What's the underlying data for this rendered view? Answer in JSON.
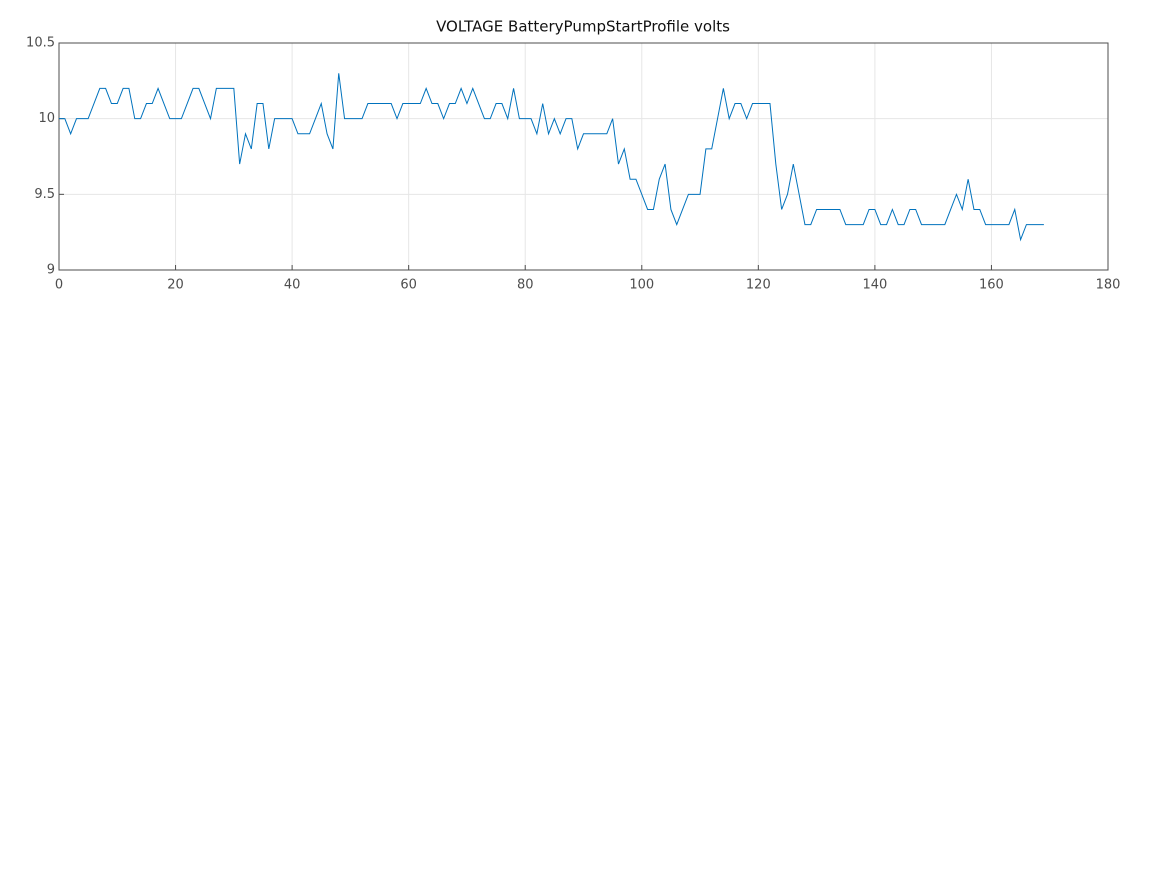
{
  "chart_data": {
    "type": "line",
    "title": "VOLTAGE BatteryPumpStartProfile volts",
    "x": [
      0,
      1,
      2,
      3,
      4,
      5,
      6,
      7,
      8,
      9,
      10,
      11,
      12,
      13,
      14,
      15,
      16,
      17,
      18,
      19,
      20,
      21,
      22,
      23,
      24,
      25,
      26,
      27,
      28,
      29,
      30,
      31,
      32,
      33,
      34,
      35,
      36,
      37,
      38,
      39,
      40,
      41,
      42,
      43,
      44,
      45,
      46,
      47,
      48,
      49,
      50,
      51,
      52,
      53,
      54,
      55,
      56,
      57,
      58,
      59,
      60,
      61,
      62,
      63,
      64,
      65,
      66,
      67,
      68,
      69,
      70,
      71,
      72,
      73,
      74,
      75,
      76,
      77,
      78,
      79,
      80,
      81,
      82,
      83,
      84,
      85,
      86,
      87,
      88,
      89,
      90,
      91,
      92,
      93,
      94,
      95,
      96,
      97,
      98,
      99,
      100,
      101,
      102,
      103,
      104,
      105,
      106,
      107,
      108,
      109,
      110,
      111,
      112,
      113,
      114,
      115,
      116,
      117,
      118,
      119,
      120,
      121,
      122,
      123,
      124,
      125,
      126,
      127,
      128,
      129,
      130,
      131,
      132,
      133,
      134,
      135,
      136,
      137,
      138,
      139,
      140,
      141,
      142,
      143,
      144,
      145,
      146,
      147,
      148,
      149,
      150,
      151,
      152,
      153,
      154,
      155,
      156,
      157,
      158,
      159,
      160,
      161,
      162,
      163,
      164,
      165,
      166,
      167,
      168,
      169
    ],
    "values": [
      10,
      10,
      9.9,
      10,
      10,
      10,
      10.1,
      10.2,
      10.2,
      10.1,
      10.1,
      10.2,
      10.2,
      10,
      10,
      10.1,
      10.1,
      10.2,
      10.1,
      10,
      10,
      10,
      10.1,
      10.2,
      10.2,
      10.1,
      10,
      10.2,
      10.2,
      10.2,
      10.2,
      9.7,
      9.9,
      9.8,
      10.1,
      10.1,
      9.8,
      10,
      10,
      10,
      10,
      9.9,
      9.9,
      9.9,
      10,
      10.1,
      9.9,
      9.8,
      10.3,
      10,
      10,
      10,
      10,
      10.1,
      10.1,
      10.1,
      10.1,
      10.1,
      10,
      10.1,
      10.1,
      10.1,
      10.1,
      10.2,
      10.1,
      10.1,
      10,
      10.1,
      10.1,
      10.2,
      10.1,
      10.2,
      10.1,
      10,
      10,
      10.1,
      10.1,
      10,
      10.2,
      10,
      10,
      10,
      9.9,
      10.1,
      9.9,
      10,
      9.9,
      10,
      10,
      9.8,
      9.9,
      9.9,
      9.9,
      9.9,
      9.9,
      10,
      9.7,
      9.8,
      9.6,
      9.6,
      9.5,
      9.4,
      9.4,
      9.6,
      9.7,
      9.4,
      9.3,
      9.4,
      9.5,
      9.5,
      9.5,
      9.8,
      9.8,
      10,
      10.2,
      10,
      10.1,
      10.1,
      10,
      10.1,
      10.1,
      10.1,
      10.1,
      9.7,
      9.4,
      9.5,
      9.7,
      9.5,
      9.3,
      9.3,
      9.4,
      9.4,
      9.4,
      9.4,
      9.4,
      9.3,
      9.3,
      9.3,
      9.3,
      9.4,
      9.4,
      9.3,
      9.3,
      9.4,
      9.3,
      9.3,
      9.4,
      9.4,
      9.3,
      9.3,
      9.3,
      9.3,
      9.3,
      9.4,
      9.5,
      9.4,
      9.6,
      9.4,
      9.4,
      9.3,
      9.3,
      9.3,
      9.3,
      9.3,
      9.4,
      9.2,
      9.3,
      9.3,
      9.3,
      9.3
    ],
    "color": "#0072bd",
    "xlim": [
      0,
      180
    ],
    "xticks": [
      0,
      20,
      40,
      60,
      80,
      100,
      120,
      140,
      160,
      180
    ],
    "ylim": [
      9,
      10.5
    ],
    "yticks": [
      9,
      9.5,
      10,
      10.5
    ],
    "grid": true
  }
}
